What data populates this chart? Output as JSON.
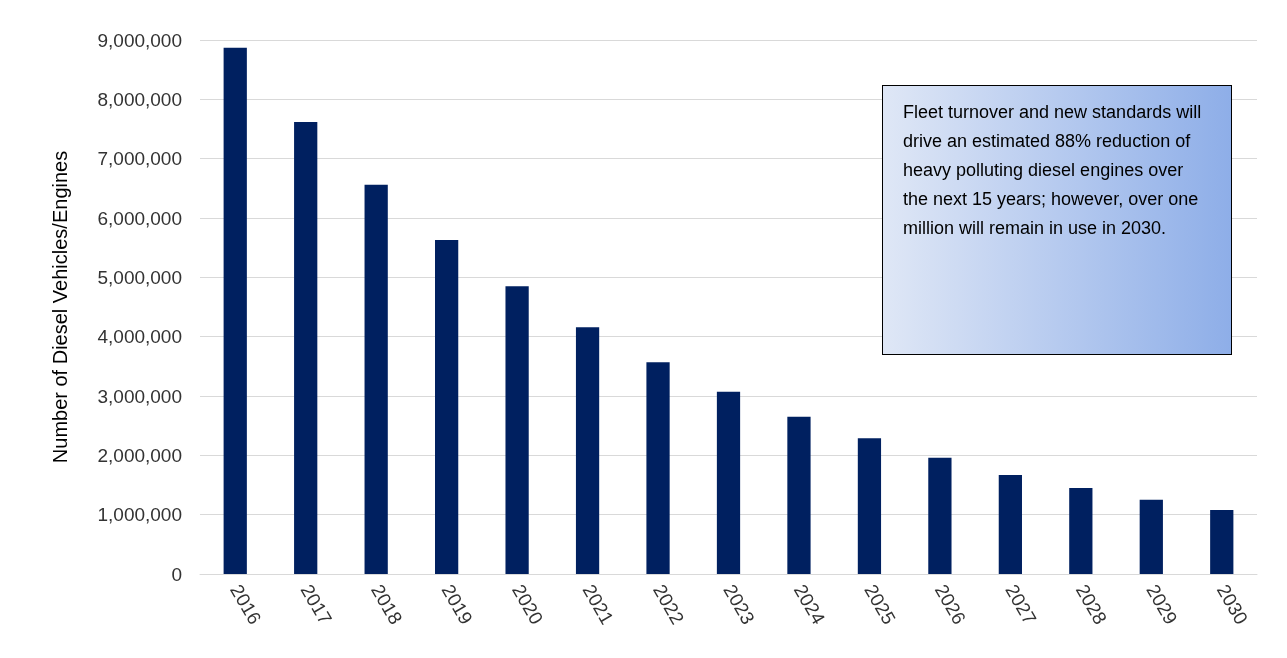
{
  "chart_data": {
    "type": "bar",
    "ylabel": "Number of Diesel Vehicles/Engines",
    "categories": [
      "2016",
      "2017",
      "2018",
      "2019",
      "2020",
      "2021",
      "2022",
      "2023",
      "2024",
      "2025",
      "2026",
      "2027",
      "2028",
      "2029",
      "2030"
    ],
    "values": [
      8870000,
      7620000,
      6560000,
      5630000,
      4850000,
      4160000,
      3570000,
      3070000,
      2650000,
      2290000,
      1960000,
      1670000,
      1450000,
      1250000,
      1080000
    ],
    "color": "#002060",
    "ylim": [
      0,
      9000000
    ],
    "yticks": [
      0,
      {
        "value": 1000000,
        "label": "1,000,000"
      },
      {
        "value": 2000000,
        "label": "2,000,000"
      },
      {
        "value": 3000000,
        "label": "3,000,000"
      },
      {
        "value": 4000000,
        "label": "4,000,000"
      },
      {
        "value": 5000000,
        "label": "5,000,000"
      },
      {
        "value": 6000000,
        "label": "6,000,000"
      },
      {
        "value": 7000000,
        "label": "7,000,000"
      },
      {
        "value": 8000000,
        "label": "8,000,000"
      },
      {
        "value": 9000000,
        "label": "9,000,000"
      }
    ],
    "grid": "y",
    "annotations": [
      "Fleet turnover and new standards will drive an estimated 88% reduction of heavy polluting diesel engines over the next 15 years; however, over one million will remain in use in 2030."
    ]
  }
}
